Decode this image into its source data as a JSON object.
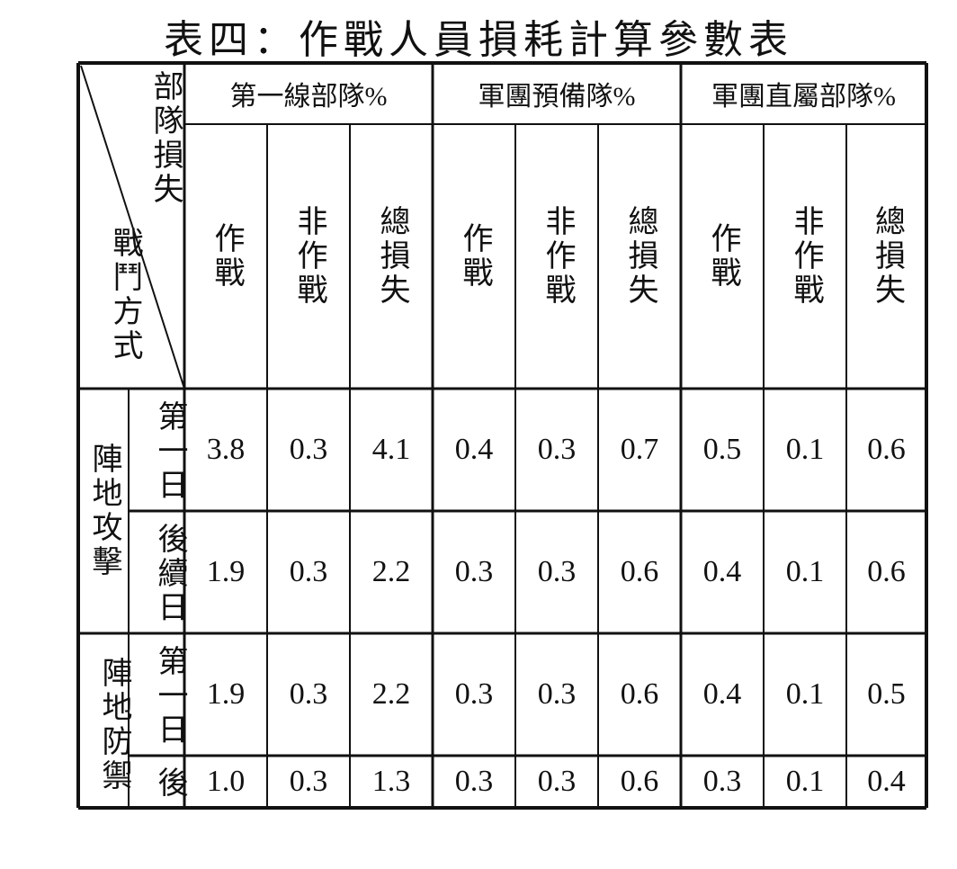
{
  "header": {
    "title": "表四：作戰人員損耗計算參數表"
  },
  "table": {
    "corner": {
      "top": "部隊損失",
      "bottom": "戰鬥方式"
    },
    "groups": [
      "第一線部隊%",
      "軍團預備隊%",
      "軍團直屬部隊%"
    ],
    "subheaders": [
      "作戰",
      "非作戰",
      "總損失",
      "作戰",
      "非作戰",
      "總損失",
      "作戰",
      "非作戰",
      "總損失"
    ],
    "sections": [
      {
        "label": "陣地攻擊",
        "rows": [
          {
            "day": "第一日",
            "cells": [
              "3.8",
              "0.3",
              "4.1",
              "0.4",
              "0.3",
              "0.7",
              "0.5",
              "0.1",
              "0.6"
            ]
          },
          {
            "day": "後續日",
            "cells": [
              "1.9",
              "0.3",
              "2.2",
              "0.3",
              "0.3",
              "0.6",
              "0.4",
              "0.1",
              "0.6"
            ]
          }
        ]
      },
      {
        "label": "陣地防禦",
        "rows": [
          {
            "day": "第一日",
            "cells": [
              "1.9",
              "0.3",
              "2.2",
              "0.3",
              "0.3",
              "0.6",
              "0.4",
              "0.1",
              "0.5"
            ]
          },
          {
            "day": "後",
            "cells": [
              "1.0",
              "0.3",
              "1.3",
              "0.3",
              "0.3",
              "0.6",
              "0.3",
              "0.1",
              "0.4"
            ]
          }
        ]
      }
    ]
  }
}
